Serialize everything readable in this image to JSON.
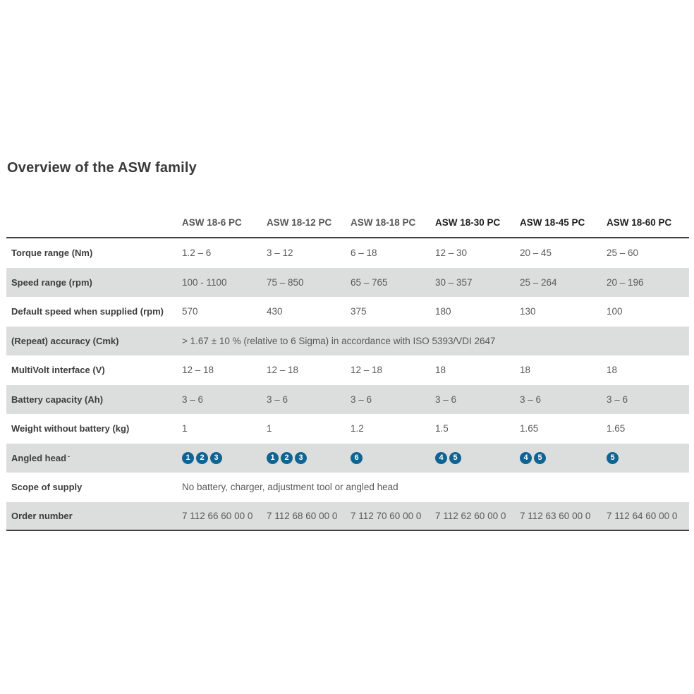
{
  "page": {
    "title": "Overview of the ASW family"
  },
  "table": {
    "columns": [
      {
        "label": "ASW 18-6 PC",
        "emphasis": false
      },
      {
        "label": "ASW 18-12 PC",
        "emphasis": false
      },
      {
        "label": "ASW 18-18 PC",
        "emphasis": false
      },
      {
        "label": "ASW 18-30 PC",
        "emphasis": true
      },
      {
        "label": "ASW 18-45 PC",
        "emphasis": true
      },
      {
        "label": "ASW 18-60 PC",
        "emphasis": true
      }
    ],
    "rows": [
      {
        "label": "Torque range (Nm)",
        "values": [
          "1.2 – 6",
          "3 – 12",
          "6 – 18",
          "12 – 30",
          "20 – 45",
          "25 – 60"
        ]
      },
      {
        "label": "Speed range (rpm)",
        "values": [
          "100 - 1100",
          "75 – 850",
          "65 – 765",
          "30 – 357",
          "25 – 264",
          "20 – 196"
        ]
      },
      {
        "label": "Default speed when supplied (rpm)",
        "values": [
          "570",
          "430",
          "375",
          "180",
          "130",
          "100"
        ]
      },
      {
        "label": "(Repeat) accuracy (Cmk)",
        "span_value": "> 1.67 ± 10 % (relative to 6 Sigma) in accordance with ISO 5393/VDI 2647"
      },
      {
        "label": "MultiVolt interface (V)",
        "values": [
          "12 – 18",
          "12 – 18",
          "12 – 18",
          "18",
          "18",
          "18"
        ]
      },
      {
        "label": "Battery capacity (Ah)",
        "values": [
          "3 – 6",
          "3 – 6",
          "3 – 6",
          "3 – 6",
          "3 – 6",
          "3 – 6"
        ]
      },
      {
        "label": "Weight without battery (kg)",
        "values": [
          "1",
          "1",
          "1.2",
          "1.5",
          "1.65",
          "1.65"
        ]
      },
      {
        "label": "Angled head",
        "footnote_mark": "-",
        "badges": [
          [
            1,
            2,
            3
          ],
          [
            1,
            2,
            3
          ],
          [
            6
          ],
          [
            4,
            5
          ],
          [
            4,
            5
          ],
          [
            5
          ]
        ]
      },
      {
        "label": "Scope of supply",
        "span_value": "No battery, charger, adjustment tool or angled head"
      },
      {
        "label": "Order number",
        "values": [
          "7 112 66 60 00 0",
          "7 112 68 60 00 0",
          "7 112 70 60 00 0",
          "7 112 62 60 00 0",
          "7 112 63 60 00 0",
          "7 112 64 60 00 0"
        ]
      }
    ],
    "colors": {
      "badge_blue": "#116391",
      "stripe_gray": "#dcdddd",
      "rule_dark": "#414141"
    }
  }
}
